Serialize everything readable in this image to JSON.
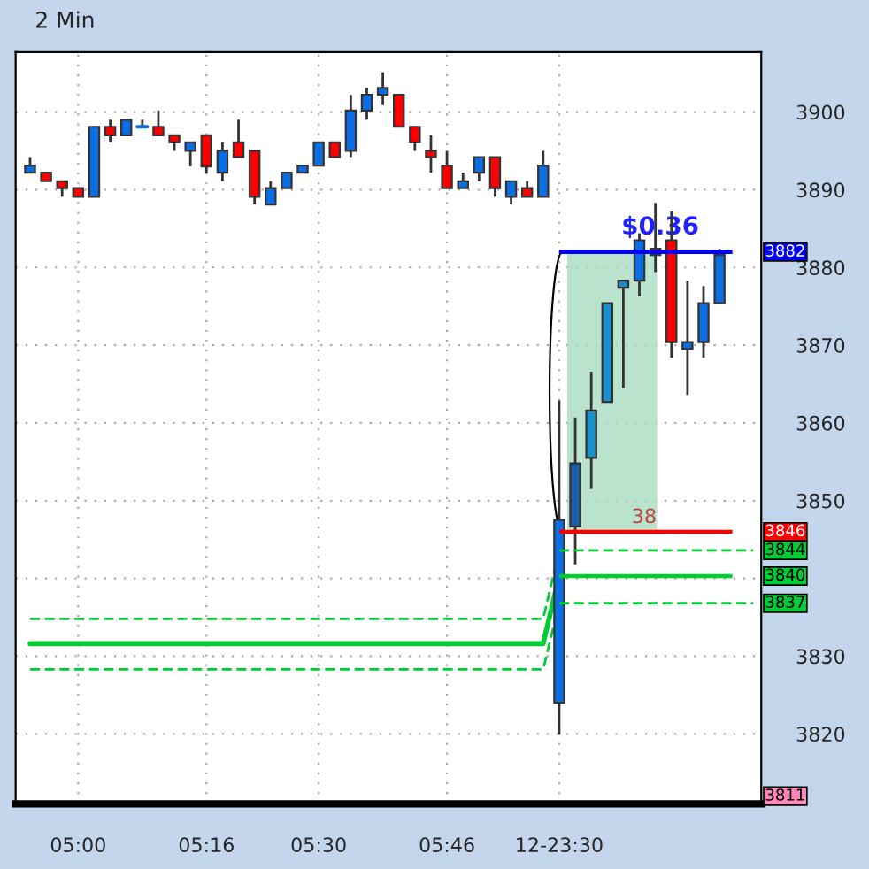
{
  "chart_data": {
    "type": "candlestick",
    "title": "2 Min",
    "categories": [
      null,
      null,
      null,
      "05:00",
      null,
      null,
      null,
      null,
      null,
      null,
      null,
      "05:16",
      null,
      null,
      null,
      null,
      null,
      null,
      "05:30",
      null,
      null,
      null,
      null,
      null,
      null,
      null,
      "05:46",
      null,
      null,
      null,
      null,
      null,
      null,
      "12-23:30",
      null,
      null,
      null,
      null,
      null,
      null,
      null,
      null,
      null,
      null
    ],
    "ohlc": [
      [
        3892.2,
        3894.2,
        3892.2,
        3893.1
      ],
      [
        3892.2,
        3892.2,
        3891.1,
        3891.1
      ],
      [
        3891.1,
        3891.1,
        3889.1,
        3890.2
      ],
      [
        3890.2,
        3890.2,
        3889.1,
        3889.1
      ],
      [
        3889.1,
        3898.1,
        3889.1,
        3898.1
      ],
      [
        3898.1,
        3899.0,
        3896.1,
        3897.0
      ],
      [
        3897.0,
        3899.0,
        3897.0,
        3899.0
      ],
      [
        3898.1,
        3899.0,
        3898.1,
        3898.1
      ],
      [
        3898.1,
        3900.2,
        3897.0,
        3897.0
      ],
      [
        3897.0,
        3897.0,
        3895.0,
        3896.1
      ],
      [
        3895.0,
        3896.1,
        3893.0,
        3896.1
      ],
      [
        3897.0,
        3897.0,
        3892.1,
        3893.0
      ],
      [
        3892.2,
        3896.1,
        3891.1,
        3895.0
      ],
      [
        3896.1,
        3899.0,
        3894.2,
        3894.2
      ],
      [
        3895.0,
        3895.0,
        3888.1,
        3889.1
      ],
      [
        3888.1,
        3891.1,
        3888.1,
        3890.2
      ],
      [
        3890.2,
        3892.2,
        3890.2,
        3892.2
      ],
      [
        3892.2,
        3893.1,
        3892.2,
        3893.1
      ],
      [
        3893.1,
        3896.1,
        3893.1,
        3896.1
      ],
      [
        3896.1,
        3896.1,
        3894.2,
        3894.2
      ],
      [
        3895.0,
        3902.2,
        3894.2,
        3900.2
      ],
      [
        3900.2,
        3903.1,
        3899.0,
        3902.2
      ],
      [
        3902.2,
        3905.1,
        3900.9,
        3903.1
      ],
      [
        3902.2,
        3902.2,
        3898.1,
        3898.1
      ],
      [
        3898.1,
        3898.1,
        3895.0,
        3896.1
      ],
      [
        3895.0,
        3897.0,
        3892.2,
        3894.2
      ],
      [
        3893.1,
        3895.0,
        3890.2,
        3890.2
      ],
      [
        3890.2,
        3892.2,
        3890.2,
        3891.1
      ],
      [
        3892.2,
        3894.2,
        3891.1,
        3894.2
      ],
      [
        3894.2,
        3894.2,
        3889.1,
        3890.2
      ],
      [
        3889.1,
        3891.1,
        3888.1,
        3891.1
      ],
      [
        3890.2,
        3891.1,
        3889.1,
        3889.1
      ],
      [
        3889.1,
        3895.0,
        3889.1,
        3893.1
      ],
      [
        3824.0,
        3862.9,
        3819.9,
        3847.5
      ],
      [
        3846.7,
        3860.7,
        3841.8,
        3854.8
      ],
      [
        3855.5,
        3866.6,
        3851.5,
        3861.6
      ],
      [
        3862.7,
        3875.4,
        3862.7,
        3875.4
      ],
      [
        3877.4,
        3878.3,
        3864.5,
        3878.3
      ],
      [
        3878.3,
        3884.4,
        3876.3,
        3883.5
      ],
      [
        3882.4,
        3888.3,
        3879.4,
        3881.6
      ],
      [
        3883.5,
        3887.2,
        3868.4,
        3870.4
      ],
      [
        3869.5,
        3878.3,
        3863.6,
        3870.4
      ],
      [
        3870.4,
        3877.6,
        3868.4,
        3875.4
      ],
      [
        3875.4,
        3882.4,
        3875.4,
        3881.6
      ]
    ],
    "colors": [
      "#0a6fe6",
      "#ff0000",
      "#ff0000",
      "#ff0000",
      "#0a6fe6",
      "#ff0000",
      "#0a6fe6",
      "#0a6fe6",
      "#ff0000",
      "#ff0000",
      "#0a6fe6",
      "#ff0000",
      "#0a6fe6",
      "#ff0000",
      "#ff0000",
      "#0a6fe6",
      "#0a6fe6",
      "#0a6fe6",
      "#0a6fe6",
      "#ff0000",
      "#0a6fe6",
      "#0a6fe6",
      "#0a6fe6",
      "#ff0000",
      "#ff0000",
      "#ff0000",
      "#ff0000",
      "#0a6fe6",
      "#0a6fe6",
      "#ff0000",
      "#0a6fe6",
      "#ff0000",
      "#0a6fe6",
      "#0a6fe6",
      "#1a5fa8",
      "#1a8fc8",
      "#1a8fc8",
      "#1a8fc8",
      "#0a6fe6",
      "#ff0000",
      "#ff0000",
      "#0a6fe6",
      "#0a6fe6",
      "#0a6fe6"
    ],
    "series": [
      {
        "type": "line",
        "color": "#00cc33",
        "line_style": "solid",
        "values": [
          3831.6,
          3831.6,
          3831.6,
          3831.6,
          3831.6,
          3831.6,
          3831.6,
          3831.6,
          3831.6,
          3831.6,
          3831.6,
          3831.6,
          3831.6,
          3831.6,
          3831.6,
          3831.6,
          3831.6,
          3831.6,
          3831.6,
          3831.6,
          3831.6,
          3831.6,
          3831.6,
          3831.6,
          3831.6,
          3831.6,
          3831.6,
          3831.6,
          3831.6,
          3831.6,
          3831.6,
          3831.6,
          3831.6,
          3840.3,
          null,
          null,
          null,
          null,
          null,
          null,
          null,
          null,
          null,
          null
        ]
      },
      {
        "type": "line",
        "color": "#00cc33",
        "line_style": "dashed",
        "values": [
          3834.8,
          3834.8,
          3834.8,
          3834.8,
          3834.8,
          3834.8,
          3834.8,
          3834.8,
          3834.8,
          3834.8,
          3834.8,
          3834.8,
          3834.8,
          3834.8,
          3834.8,
          3834.8,
          3834.8,
          3834.8,
          3834.8,
          3834.8,
          3834.8,
          3834.8,
          3834.8,
          3834.8,
          3834.8,
          3834.8,
          3834.8,
          3834.8,
          3834.8,
          3834.8,
          3834.8,
          3834.8,
          3834.8,
          3843.6,
          null,
          null,
          null,
          null,
          null,
          null,
          null,
          null,
          null,
          null
        ]
      },
      {
        "type": "line",
        "color": "#00cc33",
        "line_style": "dashed",
        "values": [
          3828.3,
          3828.3,
          3828.3,
          3828.3,
          3828.3,
          3828.3,
          3828.3,
          3828.3,
          3828.3,
          3828.3,
          3828.3,
          3828.3,
          3828.3,
          3828.3,
          3828.3,
          3828.3,
          3828.3,
          3828.3,
          3828.3,
          3828.3,
          3828.3,
          3828.3,
          3828.3,
          3828.3,
          3828.3,
          3828.3,
          3828.3,
          3828.3,
          3828.3,
          3828.3,
          3828.3,
          3828.3,
          3828.3,
          3836.8,
          null,
          null,
          null,
          null,
          null,
          null,
          null,
          null,
          null,
          null
        ]
      }
    ],
    "ylim": [
      3811,
      3907.7
    ],
    "yticks": [
      3820,
      3830,
      {
        "value": 3840,
        "label": null
      },
      3850,
      3860,
      3870,
      3880,
      3890,
      3900
    ],
    "ref_lines": [
      {
        "axis": "y",
        "value": 3882,
        "label": "3882",
        "color": "#0000ff"
      },
      {
        "axis": "y",
        "value": 3846,
        "label": "3846",
        "color": "#ff0000"
      },
      {
        "axis": "y",
        "value": 3843.6,
        "label": "3844",
        "color": "#00cc33",
        "line_style": "dashed"
      },
      {
        "axis": "y",
        "value": 3840.3,
        "label": "3840",
        "color": "#00cc33",
        "line_style": "solid"
      },
      {
        "axis": "y",
        "value": 3836.8,
        "label": "3837",
        "color": "#00cc33",
        "line_style": "dashed"
      }
    ],
    "annotations": [
      "$0.36",
      "38",
      "3811"
    ],
    "grid": true
  }
}
